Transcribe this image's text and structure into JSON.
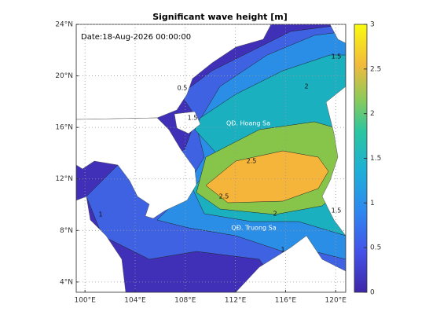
{
  "chart_data": {
    "type": "filled-contour",
    "title": "Significant wave height [m]",
    "annotation": "Date:18-Aug-2026 00:00:00",
    "place_labels": [
      "QĐ. Hoang Sa",
      "QĐ. Truong Sa"
    ],
    "xlim": [
      99.3,
      120.8
    ],
    "xticks": [
      {
        "value": 100,
        "label": "100°E"
      },
      {
        "value": 104,
        "label": "104°E"
      },
      {
        "value": 108,
        "label": "108°E"
      },
      {
        "value": 112,
        "label": "112°E"
      },
      {
        "value": 116,
        "label": "116°E"
      },
      {
        "value": 120,
        "label": "120°E"
      }
    ],
    "ylim": [
      3.2,
      24
    ],
    "yticks": [
      {
        "value": 4,
        "label": "4°N"
      },
      {
        "value": 8,
        "label": "8°N"
      },
      {
        "value": 12,
        "label": "12°N"
      },
      {
        "value": 16,
        "label": "16°N"
      },
      {
        "value": 20,
        "label": "20°N"
      },
      {
        "value": 24,
        "label": "24°N"
      }
    ],
    "grid": true,
    "levels": [
      0,
      0.5,
      1,
      1.5,
      2,
      2.5,
      3
    ],
    "colors": [
      "#4030b8",
      "#3f62e2",
      "#2b8ee6",
      "#1bb0c0",
      "#86c44a",
      "#f5b53a"
    ],
    "clim": [
      0,
      3
    ],
    "cticks": [
      0,
      0.5,
      1,
      1.5,
      2,
      2.5,
      3
    ]
  }
}
